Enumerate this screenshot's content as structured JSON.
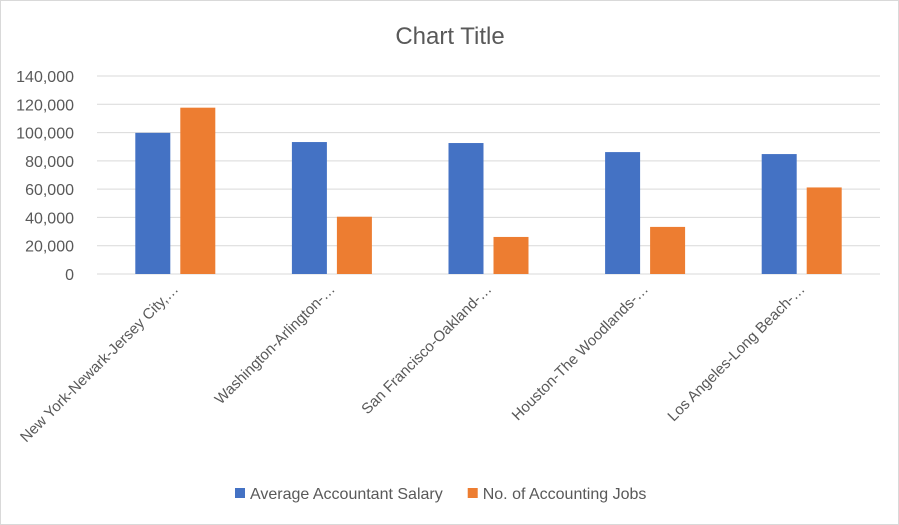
{
  "chart_data": {
    "type": "bar",
    "title": "Chart Title",
    "categories": [
      "New York-Newark-Jersey City,…",
      "Washington-Arlington-…",
      "San Francisco-Oakland-…",
      "Houston-The Woodlands-…",
      "Los Angeles-Long Beach-…"
    ],
    "series": [
      {
        "name": "Average Accountant Salary",
        "color": "#4472c4",
        "values": [
          99800,
          93300,
          92600,
          86200,
          84800
        ]
      },
      {
        "name": "No. of Accounting Jobs",
        "color": "#ed7d31",
        "values": [
          117600,
          40500,
          26200,
          33300,
          61200
        ]
      }
    ],
    "yticks": [
      "0",
      "20,000",
      "40,000",
      "60,000",
      "80,000",
      "100,000",
      "120,000",
      "140,000"
    ],
    "ylim": [
      0,
      140000
    ],
    "grid": true,
    "legend": "bottom"
  }
}
